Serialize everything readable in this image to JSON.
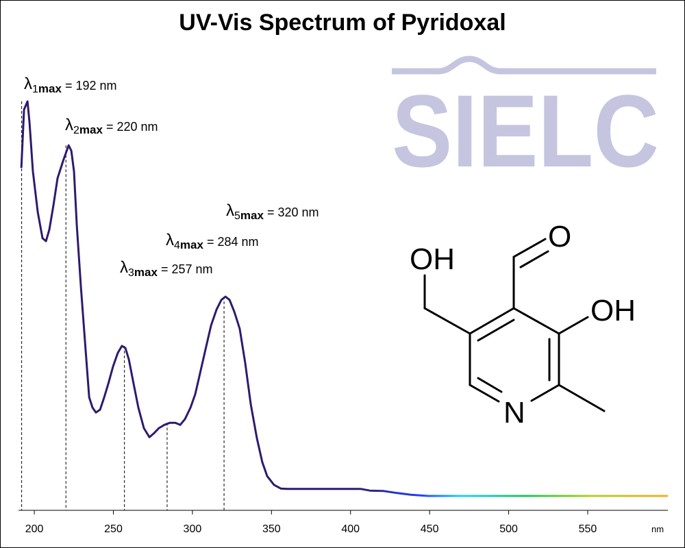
{
  "chart_data": {
    "type": "line",
    "title": "UV-Vis Spectrum of Pyridoxal",
    "x_label": "nm",
    "series": [
      {
        "name": "Pyridoxal",
        "color": "#2e1a6e",
        "x": [
          191.8,
          193.5,
          195.7,
          197.0,
          199.1,
          202.2,
          205.2,
          207.4,
          209.5,
          212.1,
          214.7,
          218.2,
          221.7,
          223.4,
          225.1,
          226.9,
          229.5,
          232.1,
          234.7,
          236.8,
          239.0,
          241.6,
          244.2,
          246.8,
          249.8,
          252.8,
          255.4,
          257.6,
          259.8,
          262.8,
          265.8,
          269.3,
          272.8,
          275.8,
          278.8,
          282.3,
          285.8,
          289.2,
          292.3,
          295.3,
          298.8,
          301.8,
          304.8,
          308.3,
          311.8,
          315.2,
          318.3,
          320.9,
          323.5,
          326.5,
          329.9,
          333.4,
          336.9,
          340.8,
          344.2,
          347.3,
          351.6,
          355.9,
          360.3,
          373.3,
          394.9,
          406.6,
          412.3,
          420.9,
          429.6,
          438.2,
          449.1,
          459.9,
          481.6,
          524.9,
          568.2,
          600.7
        ],
        "values": [
          0.833,
          0.975,
          0.995,
          0.942,
          0.825,
          0.725,
          0.662,
          0.655,
          0.683,
          0.742,
          0.808,
          0.85,
          0.888,
          0.875,
          0.825,
          0.692,
          0.542,
          0.408,
          0.275,
          0.25,
          0.238,
          0.245,
          0.275,
          0.308,
          0.35,
          0.383,
          0.4,
          0.395,
          0.367,
          0.308,
          0.25,
          0.2,
          0.178,
          0.188,
          0.2,
          0.208,
          0.213,
          0.213,
          0.208,
          0.222,
          0.25,
          0.283,
          0.333,
          0.392,
          0.45,
          0.488,
          0.512,
          0.52,
          0.512,
          0.483,
          0.442,
          0.358,
          0.258,
          0.175,
          0.117,
          0.083,
          0.062,
          0.053,
          0.052,
          0.052,
          0.052,
          0.052,
          0.048,
          0.047,
          0.042,
          0.038,
          0.035,
          0.035,
          0.035,
          0.035,
          0.035,
          0.035
        ]
      }
    ],
    "xlim": [
      190,
      600.7
    ],
    "xticks": [
      200,
      250,
      300,
      350,
      400,
      450,
      500,
      550
    ],
    "ylim": [
      0,
      1
    ],
    "annotations": [
      {
        "symbol": "λ",
        "index": "1",
        "suffix": "max",
        "text": "= 192 nm",
        "x": 192,
        "y": 0.995
      },
      {
        "symbol": "λ",
        "index": "2",
        "suffix": "max",
        "text": "= 220 nm",
        "x": 220,
        "y": 0.888
      },
      {
        "symbol": "λ",
        "index": "3",
        "suffix": "max",
        "text": "= 257 nm",
        "x": 257,
        "y": 0.4
      },
      {
        "symbol": "λ",
        "index": "4",
        "suffix": "max",
        "text": "= 284 nm",
        "x": 284,
        "y": 0.213
      },
      {
        "symbol": "λ",
        "index": "5",
        "suffix": "max",
        "text": "= 320 nm",
        "x": 320,
        "y": 0.52
      }
    ]
  },
  "logo": {
    "text": "SIELC"
  },
  "structure": {
    "labels": [
      "OH",
      "O",
      "OH",
      "N"
    ]
  }
}
